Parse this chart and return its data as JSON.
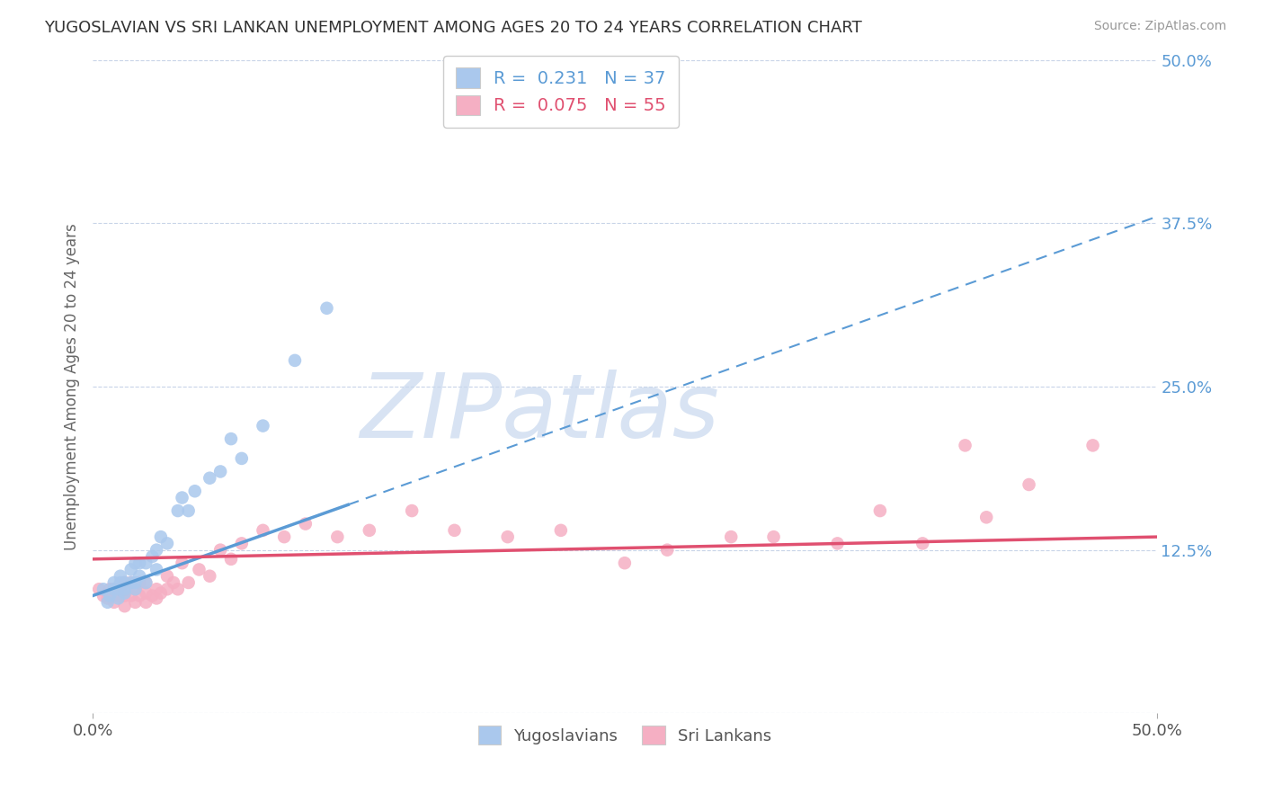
{
  "title": "YUGOSLAVIAN VS SRI LANKAN UNEMPLOYMENT AMONG AGES 20 TO 24 YEARS CORRELATION CHART",
  "source": "Source: ZipAtlas.com",
  "ylabel": "Unemployment Among Ages 20 to 24 years",
  "xlim": [
    0.0,
    0.5
  ],
  "ylim": [
    0.0,
    0.5
  ],
  "yticks_right": [
    0.0,
    0.125,
    0.25,
    0.375,
    0.5
  ],
  "ytick_labels_right": [
    "",
    "12.5%",
    "25.0%",
    "37.5%",
    "50.0%"
  ],
  "xticks": [
    0.0,
    0.5
  ],
  "xtick_labels": [
    "0.0%",
    "50.0%"
  ],
  "legend_R1": "R =  0.231",
  "legend_N1": "N = 37",
  "legend_R2": "R =  0.075",
  "legend_N2": "N = 55",
  "color_yugo": "#aac8ed",
  "color_sri": "#f5afc3",
  "color_line_yugo": "#5b9bd5",
  "color_line_sri": "#e05070",
  "watermark": "ZIPatlas",
  "watermark_color_zip": "#c8d8f0",
  "watermark_color_atlas": "#9ab8d8",
  "yugo_x": [
    0.005,
    0.007,
    0.008,
    0.01,
    0.01,
    0.012,
    0.012,
    0.013,
    0.013,
    0.015,
    0.015,
    0.015,
    0.018,
    0.018,
    0.02,
    0.02,
    0.02,
    0.022,
    0.022,
    0.025,
    0.025,
    0.028,
    0.03,
    0.03,
    0.032,
    0.035,
    0.04,
    0.042,
    0.045,
    0.048,
    0.055,
    0.06,
    0.065,
    0.07,
    0.08,
    0.095,
    0.11
  ],
  "yugo_y": [
    0.095,
    0.085,
    0.09,
    0.095,
    0.1,
    0.088,
    0.095,
    0.1,
    0.105,
    0.092,
    0.095,
    0.1,
    0.1,
    0.11,
    0.095,
    0.1,
    0.115,
    0.105,
    0.115,
    0.1,
    0.115,
    0.12,
    0.11,
    0.125,
    0.135,
    0.13,
    0.155,
    0.165,
    0.155,
    0.17,
    0.18,
    0.185,
    0.21,
    0.195,
    0.22,
    0.27,
    0.31
  ],
  "sri_x": [
    0.003,
    0.005,
    0.007,
    0.008,
    0.01,
    0.01,
    0.012,
    0.013,
    0.015,
    0.015,
    0.015,
    0.018,
    0.018,
    0.02,
    0.02,
    0.022,
    0.022,
    0.025,
    0.025,
    0.025,
    0.028,
    0.03,
    0.03,
    0.032,
    0.035,
    0.035,
    0.038,
    0.04,
    0.042,
    0.045,
    0.05,
    0.055,
    0.06,
    0.065,
    0.07,
    0.08,
    0.09,
    0.1,
    0.115,
    0.13,
    0.15,
    0.17,
    0.195,
    0.22,
    0.25,
    0.27,
    0.3,
    0.32,
    0.35,
    0.37,
    0.39,
    0.41,
    0.42,
    0.44,
    0.47
  ],
  "sri_y": [
    0.095,
    0.09,
    0.088,
    0.095,
    0.085,
    0.095,
    0.09,
    0.095,
    0.082,
    0.09,
    0.1,
    0.09,
    0.1,
    0.085,
    0.095,
    0.09,
    0.1,
    0.085,
    0.092,
    0.1,
    0.09,
    0.088,
    0.095,
    0.092,
    0.095,
    0.105,
    0.1,
    0.095,
    0.115,
    0.1,
    0.11,
    0.105,
    0.125,
    0.118,
    0.13,
    0.14,
    0.135,
    0.145,
    0.135,
    0.14,
    0.155,
    0.14,
    0.135,
    0.14,
    0.115,
    0.125,
    0.135,
    0.135,
    0.13,
    0.155,
    0.13,
    0.205,
    0.15,
    0.175,
    0.205
  ],
  "yugo_line_x0": 0.0,
  "yugo_line_y0": 0.09,
  "yugo_line_x1": 0.5,
  "yugo_line_y1": 0.38,
  "sri_line_x0": 0.0,
  "sri_line_y0": 0.118,
  "sri_line_x1": 0.5,
  "sri_line_y1": 0.135
}
